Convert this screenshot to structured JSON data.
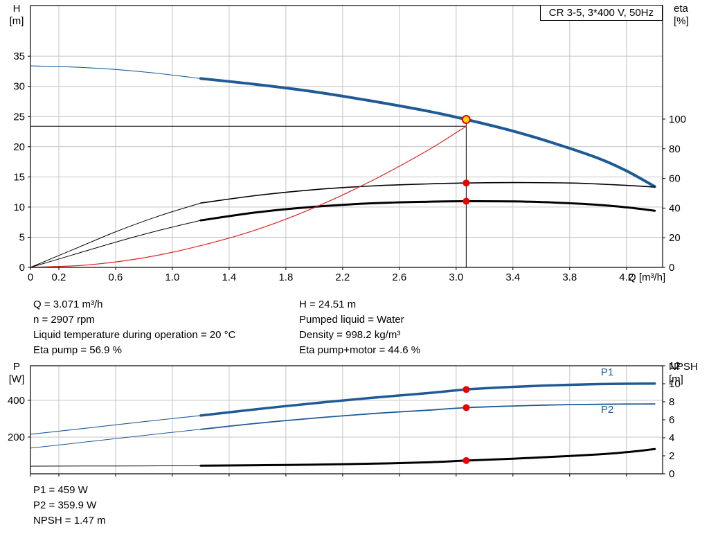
{
  "title_box": "CR 3-5, 3*400 V, 50Hz",
  "colors": {
    "blue": "#1f5a96",
    "black": "#000000",
    "red": "#dd2222",
    "dot_red": "#ee0000",
    "marker_yellow": "#ffd800",
    "grid": "#c4c4c4",
    "axis": "#000000",
    "label_blue": "#1f5a96"
  },
  "axis_titles": {
    "h": [
      "H",
      "[m]"
    ],
    "eta": [
      "eta",
      "[%]"
    ],
    "p": [
      "P",
      "[W]"
    ],
    "npsh": [
      "NPSH",
      "[m]"
    ]
  },
  "info_rows": [
    {
      "left": "Q = 3.071 m³/h",
      "right": "H = 24.51 m"
    },
    {
      "left": "n = 2907 rpm",
      "right": "Pumped liquid = Water"
    },
    {
      "left": "Liquid temperature during operation = 20 °C",
      "right": "Density = 998.2 kg/m³"
    },
    {
      "left": "Eta pump = 56.9 %",
      "right": "Eta pump+motor = 44.6 %"
    }
  ],
  "power_rows": [
    "P1 = 459 W",
    "P2 = 359.9 W",
    "NPSH = 1.47 m"
  ],
  "chart_data": [
    {
      "type": "line",
      "layout": "top",
      "title": "CR 3-5, 3*400 V, 50Hz",
      "x_axis": {
        "min": 0,
        "max": 4.455,
        "label": "Q [m³/h]",
        "show_tick_labels": true,
        "ticks": [
          {
            "v": 0,
            "l": "0"
          },
          {
            "v": 0.2,
            "l": "0.2"
          },
          {
            "v": 0.6,
            "l": "0.6"
          },
          {
            "v": 1,
            "l": "1.0"
          },
          {
            "v": 1.4,
            "l": "1.4"
          },
          {
            "v": 1.8,
            "l": "1.8"
          },
          {
            "v": 2.2,
            "l": "2.2"
          },
          {
            "v": 2.6,
            "l": "2.6"
          },
          {
            "v": 3,
            "l": "3.0"
          },
          {
            "v": 3.4,
            "l": "3.4"
          },
          {
            "v": 3.8,
            "l": "3.8"
          },
          {
            "v": 4.2,
            "l": "4.2"
          }
        ]
      },
      "y_left": {
        "min": 0,
        "max": 43.4,
        "grid": true,
        "title": [
          "H",
          "[m]"
        ],
        "ticks": [
          {
            "v": 0,
            "l": "0"
          },
          {
            "v": 5,
            "l": "5"
          },
          {
            "v": 10,
            "l": "10"
          },
          {
            "v": 15,
            "l": "15"
          },
          {
            "v": 20,
            "l": "20"
          },
          {
            "v": 25,
            "l": "25"
          },
          {
            "v": 30,
            "l": "30"
          },
          {
            "v": 35,
            "l": "35"
          }
        ]
      },
      "y_right": {
        "min": 0,
        "max": 176.6,
        "grid": false,
        "title": [
          "eta",
          "[%]"
        ],
        "ticks": [
          {
            "v": 0,
            "l": "0"
          },
          {
            "v": 20,
            "l": "20"
          },
          {
            "v": 40,
            "l": "40"
          },
          {
            "v": 60,
            "l": "60"
          },
          {
            "v": 80,
            "l": "80"
          },
          {
            "v": 100,
            "l": "100"
          }
        ]
      },
      "series": [
        {
          "name": "qh-curve-extension",
          "axis": "y_left",
          "color": "blue",
          "w": 1.1,
          "pts": [
            [
              0,
              33.4
            ],
            [
              0.3,
              33.2
            ],
            [
              0.6,
              32.8
            ],
            [
              0.9,
              32.15
            ],
            [
              1.2,
              31.3
            ]
          ]
        },
        {
          "name": "qh-curve",
          "axis": "y_left",
          "color": "blue",
          "w": 4,
          "pts": [
            [
              1.2,
              31.3
            ],
            [
              1.6,
              30.3
            ],
            [
              2.0,
              29.1
            ],
            [
              2.4,
              27.6
            ],
            [
              2.8,
              25.9
            ],
            [
              3.071,
              24.51
            ],
            [
              3.4,
              22.6
            ],
            [
              3.7,
              20.5
            ],
            [
              4.0,
              18.1
            ],
            [
              4.2,
              16.0
            ],
            [
              4.4,
              13.4
            ]
          ]
        },
        {
          "name": "eta-pump-extension",
          "axis": "y_right",
          "color": "black",
          "w": 1,
          "pts": [
            [
              0,
              0
            ],
            [
              0.3,
              12
            ],
            [
              0.6,
              24
            ],
            [
              0.9,
              34.5
            ],
            [
              1.2,
              43.4
            ]
          ]
        },
        {
          "name": "eta-pump-curve",
          "axis": "y_right",
          "color": "black",
          "w": 1.6,
          "pts": [
            [
              1.2,
              43.4
            ],
            [
              1.6,
              48.6
            ],
            [
              2.0,
              52.4
            ],
            [
              2.4,
              54.9
            ],
            [
              2.8,
              56.3
            ],
            [
              3.071,
              56.9
            ],
            [
              3.4,
              57.2
            ],
            [
              3.8,
              56.9
            ],
            [
              4.1,
              55.8
            ],
            [
              4.4,
              54.2
            ]
          ]
        },
        {
          "name": "eta-pump-motor-extension",
          "axis": "y_right",
          "color": "black",
          "w": 1,
          "pts": [
            [
              0,
              0
            ],
            [
              0.3,
              8.5
            ],
            [
              0.6,
              17
            ],
            [
              0.9,
              24.8
            ],
            [
              1.2,
              31.7
            ]
          ]
        },
        {
          "name": "eta-pump-motor-curve",
          "axis": "y_right",
          "color": "black",
          "w": 3,
          "pts": [
            [
              1.2,
              31.7
            ],
            [
              1.6,
              37.2
            ],
            [
              2.0,
              40.9
            ],
            [
              2.4,
              43.2
            ],
            [
              2.8,
              44.3
            ],
            [
              3.071,
              44.6
            ],
            [
              3.4,
              44.5
            ],
            [
              3.7,
              43.7
            ],
            [
              4.0,
              42.2
            ],
            [
              4.2,
              40.5
            ],
            [
              4.4,
              38.2
            ]
          ]
        },
        {
          "name": "system-curve",
          "axis": "y_left",
          "color": "red",
          "w": 1.2,
          "pts": [
            [
              0,
              0
            ],
            [
              0.4,
              0.4
            ],
            [
              0.8,
              1.6
            ],
            [
              1.2,
              3.6
            ],
            [
              1.6,
              6.3
            ],
            [
              2.0,
              9.9
            ],
            [
              2.4,
              14.3
            ],
            [
              2.8,
              19.4
            ],
            [
              3.071,
              23.4
            ]
          ]
        }
      ],
      "duty_point": {
        "q": 3.071,
        "h": 24.51,
        "h_line": 23.4
      },
      "markers": [
        {
          "name": "eta-pump-dot",
          "q": 3.071,
          "v": 56.9,
          "axis": "y_right",
          "r": 5,
          "fill": "dot_red"
        },
        {
          "name": "eta-pump-motor-dot",
          "q": 3.071,
          "v": 44.6,
          "axis": "y_right",
          "r": 5,
          "fill": "dot_red"
        },
        {
          "name": "duty-point-marker",
          "q": 3.071,
          "v": 24.51,
          "axis": "y_left",
          "r": 5.5,
          "fill": "marker_yellow",
          "stroke": "dot_red"
        }
      ],
      "annotations": []
    },
    {
      "type": "line",
      "layout": "bottom",
      "title": "",
      "x_axis": {
        "min": 0,
        "max": 4.455,
        "label": "",
        "show_tick_labels": false,
        "ticks": [
          {
            "v": 0,
            "l": "0"
          },
          {
            "v": 0.2,
            "l": "0.2"
          },
          {
            "v": 0.6,
            "l": "0.6"
          },
          {
            "v": 1,
            "l": "1.0"
          },
          {
            "v": 1.4,
            "l": "1.4"
          },
          {
            "v": 1.8,
            "l": "1.8"
          },
          {
            "v": 2.2,
            "l": "2.2"
          },
          {
            "v": 2.6,
            "l": "2.6"
          },
          {
            "v": 3,
            "l": "3.0"
          },
          {
            "v": 3.4,
            "l": "3.4"
          },
          {
            "v": 3.8,
            "l": "3.8"
          },
          {
            "v": 4.2,
            "l": "4.2"
          }
        ]
      },
      "y_left": {
        "min": 0,
        "max": 588,
        "grid": true,
        "title": [
          "P",
          "[W]"
        ],
        "ticks": [
          {
            "v": 200,
            "l": "200"
          },
          {
            "v": 400,
            "l": "400"
          }
        ]
      },
      "y_right": {
        "min": 0,
        "max": 12,
        "grid": false,
        "title": [
          "NPSH",
          "[m]"
        ],
        "ticks": [
          {
            "v": 0,
            "l": "0"
          },
          {
            "v": 2,
            "l": "2"
          },
          {
            "v": 4,
            "l": "4"
          },
          {
            "v": 6,
            "l": "6"
          },
          {
            "v": 8,
            "l": "8"
          },
          {
            "v": 10,
            "l": "10"
          },
          {
            "v": 12,
            "l": "12"
          }
        ]
      },
      "series": [
        {
          "name": "p1-curve-extension",
          "axis": "y_left",
          "color": "blue",
          "w": 1.1,
          "pts": [
            [
              0,
              215
            ],
            [
              0.4,
              249
            ],
            [
              0.8,
              284
            ],
            [
              1.2,
              317
            ]
          ]
        },
        {
          "name": "p1-curve",
          "axis": "y_left",
          "color": "blue",
          "w": 3.5,
          "pts": [
            [
              1.2,
              317
            ],
            [
              1.6,
              352
            ],
            [
              2.0,
              384
            ],
            [
              2.4,
              413
            ],
            [
              2.8,
              439
            ],
            [
              3.071,
              459
            ],
            [
              3.4,
              473
            ],
            [
              3.7,
              482
            ],
            [
              4.0,
              488
            ],
            [
              4.2,
              490
            ],
            [
              4.4,
              491
            ]
          ]
        },
        {
          "name": "p2-curve-extension",
          "axis": "y_left",
          "color": "blue",
          "w": 1,
          "pts": [
            [
              0,
              140
            ],
            [
              0.4,
              174
            ],
            [
              0.8,
              209
            ],
            [
              1.2,
              242
            ]
          ]
        },
        {
          "name": "p2-curve",
          "axis": "y_left",
          "color": "blue",
          "w": 1.8,
          "pts": [
            [
              1.2,
              242
            ],
            [
              1.6,
              275
            ],
            [
              2.0,
              303
            ],
            [
              2.4,
              327
            ],
            [
              2.8,
              346
            ],
            [
              3.071,
              359.9
            ],
            [
              3.4,
              369
            ],
            [
              3.7,
              375
            ],
            [
              4.0,
              378
            ],
            [
              4.2,
              379.5
            ],
            [
              4.4,
              380
            ]
          ]
        },
        {
          "name": "npsh-curve-extension",
          "axis": "y_right",
          "color": "black",
          "w": 1,
          "pts": [
            [
              0,
              0.85
            ],
            [
              0.6,
              0.87
            ],
            [
              1.2,
              0.9
            ]
          ]
        },
        {
          "name": "npsh-curve",
          "axis": "y_right",
          "color": "black",
          "w": 3,
          "pts": [
            [
              1.2,
              0.9
            ],
            [
              1.6,
              0.95
            ],
            [
              2.0,
              1.02
            ],
            [
              2.4,
              1.12
            ],
            [
              2.8,
              1.28
            ],
            [
              3.071,
              1.47
            ],
            [
              3.4,
              1.68
            ],
            [
              3.7,
              1.9
            ],
            [
              4.0,
              2.15
            ],
            [
              4.2,
              2.4
            ],
            [
              4.4,
              2.75
            ]
          ]
        }
      ],
      "markers": [
        {
          "name": "p1-dot",
          "q": 3.071,
          "v": 459,
          "axis": "y_left",
          "r": 5,
          "fill": "dot_red"
        },
        {
          "name": "p2-dot",
          "q": 3.071,
          "v": 359.9,
          "axis": "y_left",
          "r": 5,
          "fill": "dot_red"
        },
        {
          "name": "npsh-dot",
          "q": 3.071,
          "v": 1.47,
          "axis": "y_right",
          "r": 5,
          "fill": "dot_red"
        }
      ],
      "annotations": [
        {
          "text": "P1",
          "q": 4.02,
          "v": 554,
          "axis": "y_left",
          "color": "label_blue"
        },
        {
          "text": "P2",
          "q": 4.02,
          "v": 350,
          "axis": "y_left",
          "color": "label_blue"
        }
      ]
    }
  ]
}
